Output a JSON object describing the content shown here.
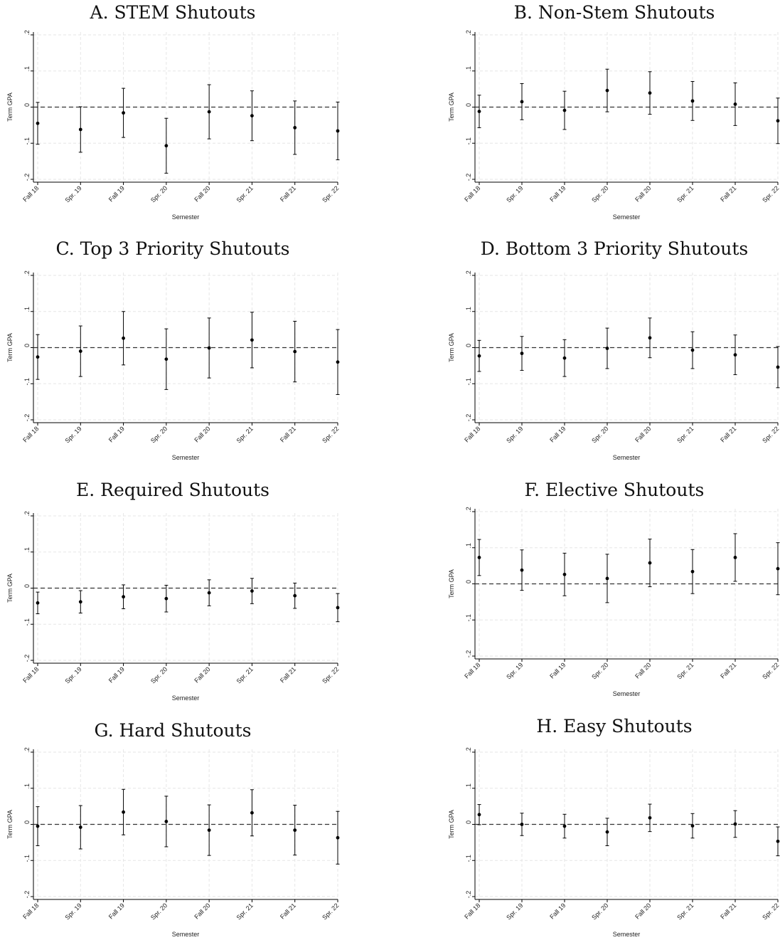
{
  "figure": {
    "x_axis_label": "Semester",
    "y_axis_label": "Term GPA",
    "marker_color": "#000000",
    "grid_color": "#e6e6e6"
  },
  "chart_data": [
    {
      "type": "scatter",
      "title": "A. STEM Shutouts",
      "xlabel": "Semester",
      "ylabel": "Term GPA",
      "categories": [
        "Fall 18",
        "Spr. 19",
        "Fall 19",
        "Spr. 20",
        "Fall 20",
        "Spr. 21",
        "Fall 21",
        "Spr. 22"
      ],
      "y_ticks": [
        0.2,
        0.1,
        0,
        -0.1,
        -0.2
      ],
      "y_tick_labels": [
        ".2",
        ".1",
        "0",
        "-.1",
        "-.2"
      ],
      "ylim": [
        -0.21,
        0.21
      ],
      "reference_line": 0,
      "grid": true,
      "series": [
        {
          "values": [
            -0.045,
            -0.062,
            -0.016,
            -0.107,
            -0.013,
            -0.024,
            -0.057,
            -0.066
          ],
          "ci_low": [
            -0.103,
            -0.125,
            -0.084,
            -0.183,
            -0.088,
            -0.093,
            -0.131,
            -0.146
          ],
          "ci_high": [
            0.013,
            0.001,
            0.052,
            -0.031,
            0.062,
            0.045,
            0.017,
            0.014
          ]
        }
      ]
    },
    {
      "type": "scatter",
      "title": "B. Non-Stem Shutouts",
      "xlabel": "Semester",
      "ylabel": "Term GPA",
      "categories": [
        "Fall 18",
        "Spr. 19",
        "Fall 19",
        "Spr. 20",
        "Fall 20",
        "Spr. 21",
        "Fall 21",
        "Spr. 22"
      ],
      "y_ticks": [
        0.2,
        0.1,
        0,
        -0.1,
        -0.2
      ],
      "y_tick_labels": [
        ".2",
        ".1",
        "0",
        "-.1",
        "-.2"
      ],
      "ylim": [
        -0.21,
        0.21
      ],
      "reference_line": 0,
      "grid": true,
      "series": [
        {
          "values": [
            -0.012,
            0.015,
            -0.009,
            0.046,
            0.039,
            0.017,
            0.008,
            -0.038
          ],
          "ci_low": [
            -0.057,
            -0.035,
            -0.062,
            -0.013,
            -0.02,
            -0.037,
            -0.051,
            -0.101
          ],
          "ci_high": [
            0.033,
            0.065,
            0.044,
            0.105,
            0.098,
            0.071,
            0.067,
            0.025
          ]
        }
      ]
    },
    {
      "type": "scatter",
      "title": "C. Top 3 Priority Shutouts",
      "xlabel": "Semester",
      "ylabel": "Term GPA",
      "categories": [
        "Fall 18",
        "Spr. 19",
        "Fall 19",
        "Spr. 20",
        "Fall 20",
        "Spr. 21",
        "Fall 21",
        "Spr. 22"
      ],
      "y_ticks": [
        0.2,
        0.1,
        0,
        -0.1,
        -0.2
      ],
      "y_tick_labels": [
        ".2",
        ".1",
        "0",
        "-.1",
        "-.2"
      ],
      "ylim": [
        -0.21,
        0.21
      ],
      "reference_line": 0,
      "grid": true,
      "series": [
        {
          "values": [
            -0.026,
            -0.01,
            0.026,
            -0.032,
            -0.001,
            0.021,
            -0.011,
            -0.04
          ],
          "ci_low": [
            -0.088,
            -0.08,
            -0.048,
            -0.116,
            -0.084,
            -0.056,
            -0.095,
            -0.13
          ],
          "ci_high": [
            0.036,
            0.06,
            0.1,
            0.052,
            0.082,
            0.098,
            0.073,
            0.05
          ]
        }
      ]
    },
    {
      "type": "scatter",
      "title": "D. Bottom 3 Priority Shutouts",
      "xlabel": "Semester",
      "ylabel": "Term GPA",
      "categories": [
        "Fall 18",
        "Spr. 19",
        "Fall 19",
        "Spr. 20",
        "Fall 20",
        "Spr. 21",
        "Fall 21",
        "Spr. 22"
      ],
      "y_ticks": [
        0.2,
        0.1,
        0,
        -0.1,
        -0.2
      ],
      "y_tick_labels": [
        ".2",
        ".1",
        "0",
        "-.1",
        "-.2"
      ],
      "ylim": [
        -0.21,
        0.21
      ],
      "reference_line": 0,
      "grid": true,
      "series": [
        {
          "values": [
            -0.023,
            -0.016,
            -0.029,
            -0.002,
            0.027,
            -0.007,
            -0.02,
            -0.054
          ],
          "ci_low": [
            -0.066,
            -0.063,
            -0.08,
            -0.058,
            -0.028,
            -0.058,
            -0.075,
            -0.111
          ],
          "ci_high": [
            0.02,
            0.031,
            0.022,
            0.054,
            0.082,
            0.044,
            0.035,
            0.003
          ]
        }
      ]
    },
    {
      "type": "scatter",
      "title": "E. Required Shutouts",
      "xlabel": "Semester",
      "ylabel": "Term GPA",
      "categories": [
        "Fall 18",
        "Spr. 19",
        "Fall 19",
        "Spr. 20",
        "Fall 20",
        "Spr. 21",
        "Fall 21",
        "Spr. 22"
      ],
      "y_ticks": [
        0.2,
        0.1,
        0,
        -0.1,
        -0.2
      ],
      "y_tick_labels": [
        ".2",
        ".1",
        "0",
        "-.1",
        "-.2"
      ],
      "ylim": [
        -0.21,
        0.21
      ],
      "reference_line": 0,
      "grid": true,
      "series": [
        {
          "values": [
            -0.041,
            -0.038,
            -0.024,
            -0.029,
            -0.013,
            -0.008,
            -0.021,
            -0.054
          ],
          "ci_low": [
            -0.071,
            -0.069,
            -0.057,
            -0.066,
            -0.049,
            -0.043,
            -0.056,
            -0.093
          ],
          "ci_high": [
            -0.011,
            -0.007,
            0.009,
            0.008,
            0.023,
            0.027,
            0.014,
            -0.015
          ]
        }
      ]
    },
    {
      "type": "scatter",
      "title": "F. Elective Shutouts",
      "xlabel": "Semester",
      "ylabel": "Term GPA",
      "categories": [
        "Fall 18",
        "Spr. 19",
        "Fall 19",
        "Spr. 20",
        "Fall 20",
        "Spr. 21",
        "Fall 21",
        "Spr. 22"
      ],
      "y_ticks": [
        0.2,
        0.1,
        0,
        -0.1,
        -0.2
      ],
      "y_tick_labels": [
        ".2",
        ".1",
        "0",
        "-.1",
        "-.2"
      ],
      "ylim": [
        -0.21,
        0.21
      ],
      "reference_line": 0,
      "grid": true,
      "series": [
        {
          "values": [
            0.073,
            0.038,
            0.026,
            0.015,
            0.058,
            0.034,
            0.073,
            0.042
          ],
          "ci_low": [
            0.023,
            -0.018,
            -0.033,
            -0.052,
            -0.008,
            -0.027,
            0.007,
            -0.03
          ],
          "ci_high": [
            0.123,
            0.094,
            0.085,
            0.082,
            0.124,
            0.095,
            0.139,
            0.114
          ]
        }
      ]
    },
    {
      "type": "scatter",
      "title": "G. Hard Shutouts",
      "xlabel": "Semester",
      "ylabel": "Term GPA",
      "categories": [
        "Fall 18",
        "Spr. 19",
        "Fall 19",
        "Spr. 20",
        "Fall 20",
        "Spr. 21",
        "Fall 21",
        "Spr. 22"
      ],
      "y_ticks": [
        0.2,
        0.1,
        0,
        -0.1,
        -0.2
      ],
      "y_tick_labels": [
        ".2",
        ".1",
        "0",
        "-.1",
        "-.2"
      ],
      "ylim": [
        -0.21,
        0.21
      ],
      "reference_line": 0,
      "grid": true,
      "series": [
        {
          "values": [
            -0.005,
            -0.008,
            0.034,
            0.008,
            -0.016,
            0.032,
            -0.016,
            -0.037
          ],
          "ci_low": [
            -0.059,
            -0.068,
            -0.029,
            -0.062,
            -0.086,
            -0.032,
            -0.085,
            -0.11
          ],
          "ci_high": [
            0.049,
            0.052,
            0.097,
            0.078,
            0.054,
            0.096,
            0.053,
            0.036
          ]
        }
      ]
    },
    {
      "type": "scatter",
      "title": "H. Easy Shutouts",
      "xlabel": "Semester",
      "ylabel": "Term GPA",
      "categories": [
        "Fall 18",
        "Spr. 19",
        "Fall 19",
        "Spr. 20",
        "Fall 20",
        "Spr. 21",
        "Fall 21",
        "Spr. 22"
      ],
      "y_ticks": [
        0.2,
        0.1,
        0,
        -0.1,
        -0.2
      ],
      "y_tick_labels": [
        ".2",
        ".1",
        "0",
        "-.1",
        "-.2"
      ],
      "ylim": [
        -0.21,
        0.21
      ],
      "reference_line": 0,
      "grid": true,
      "series": [
        {
          "values": [
            0.027,
            0.0,
            -0.005,
            -0.021,
            0.018,
            -0.004,
            0.001,
            -0.047
          ],
          "ci_low": [
            -0.001,
            -0.031,
            -0.038,
            -0.059,
            -0.02,
            -0.038,
            -0.036,
            -0.087
          ],
          "ci_high": [
            0.055,
            0.031,
            0.028,
            0.017,
            0.056,
            0.03,
            0.038,
            -0.007
          ]
        }
      ]
    }
  ]
}
